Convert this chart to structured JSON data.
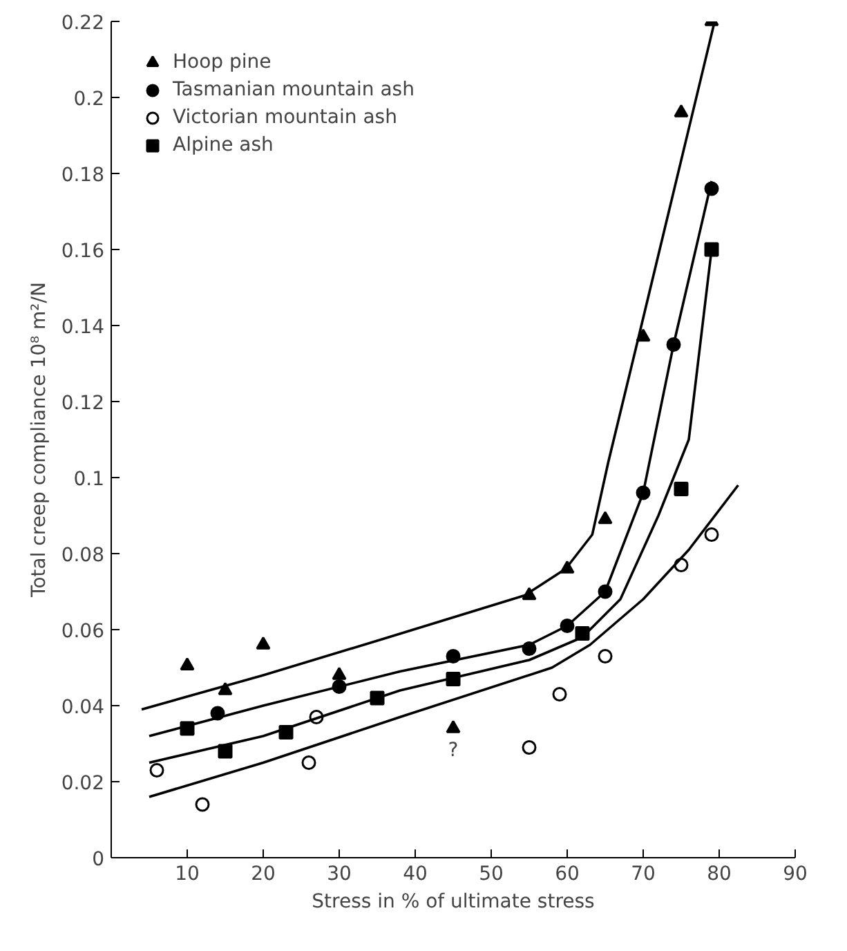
{
  "chart_data": {
    "type": "scatter",
    "xlabel": "Stress in % of ultimate stress",
    "ylabel": "Total creep compliance 10⁸ m²/N",
    "xlim": [
      0,
      90
    ],
    "ylim": [
      0,
      0.22
    ],
    "xticks": [
      10,
      20,
      30,
      40,
      50,
      60,
      70,
      80,
      90
    ],
    "yticks": [
      0,
      0.02,
      0.04,
      0.06,
      0.08,
      0.1,
      0.12,
      0.14,
      0.16,
      0.18,
      0.2,
      0.22
    ],
    "grid": false,
    "legend": "top left",
    "series": [
      {
        "name": "Hoop pine",
        "color": "#000000",
        "marker": "triangle",
        "x": [
          10,
          15,
          20,
          30,
          45,
          55,
          60,
          65,
          70,
          75,
          79
        ],
        "values": [
          0.0505,
          0.044,
          0.056,
          0.048,
          0.034,
          0.069,
          0.076,
          0.089,
          0.137,
          0.196,
          0.22
        ],
        "value_labels": [
          null,
          null,
          null,
          null,
          "?",
          null,
          null,
          null,
          null,
          null,
          null
        ]
      },
      {
        "name": "Tasmanian mountain ash",
        "color": "#000000",
        "marker": "circle",
        "x": [
          14,
          30,
          45,
          55,
          60,
          65,
          70,
          74,
          79
        ],
        "values": [
          0.038,
          0.045,
          0.053,
          0.055,
          0.061,
          0.07,
          0.096,
          0.135,
          0.176
        ]
      },
      {
        "name": "Victorian mountain ash",
        "color": "#ffffff",
        "marker": "circle",
        "x": [
          6,
          12,
          26,
          27,
          55,
          59,
          65,
          75,
          79
        ],
        "values": [
          0.023,
          0.014,
          0.025,
          0.037,
          0.029,
          0.043,
          0.053,
          0.077,
          0.085
        ]
      },
      {
        "name": "Alpine ash",
        "color": "#000000",
        "marker": "square",
        "x": [
          10,
          15,
          23,
          35,
          45,
          62,
          75,
          79
        ],
        "values": [
          0.034,
          0.028,
          0.033,
          0.042,
          0.047,
          0.059,
          0.097,
          0.16
        ]
      },
      {
        "type": "line",
        "color": "#000000",
        "marker": "none",
        "x": [
          4,
          20,
          36.5,
          54.4,
          59.8,
          63.3,
          65.4,
          69.4,
          79.4
        ],
        "values": [
          0.039,
          0.048,
          0.058,
          0.069,
          0.076,
          0.085,
          0.104,
          0.137,
          0.22
        ]
      },
      {
        "type": "line",
        "color": "#000000",
        "marker": "none",
        "x": [
          5,
          20,
          38,
          55,
          60,
          65,
          70,
          74,
          79
        ],
        "values": [
          0.032,
          0.04,
          0.049,
          0.056,
          0.061,
          0.07,
          0.096,
          0.135,
          0.178
        ]
      },
      {
        "type": "line",
        "color": "#000000",
        "marker": "none",
        "x": [
          5,
          20,
          38,
          55,
          62,
          67,
          72,
          76,
          79
        ],
        "values": [
          0.025,
          0.032,
          0.044,
          0.052,
          0.058,
          0.068,
          0.09,
          0.11,
          0.16
        ]
      },
      {
        "type": "line",
        "color": "#000000",
        "marker": "none",
        "x": [
          5,
          20,
          38,
          58,
          63,
          70,
          76,
          82.5
        ],
        "values": [
          0.016,
          0.025,
          0.037,
          0.05,
          0.056,
          0.068,
          0.081,
          0.098
        ]
      }
    ]
  }
}
